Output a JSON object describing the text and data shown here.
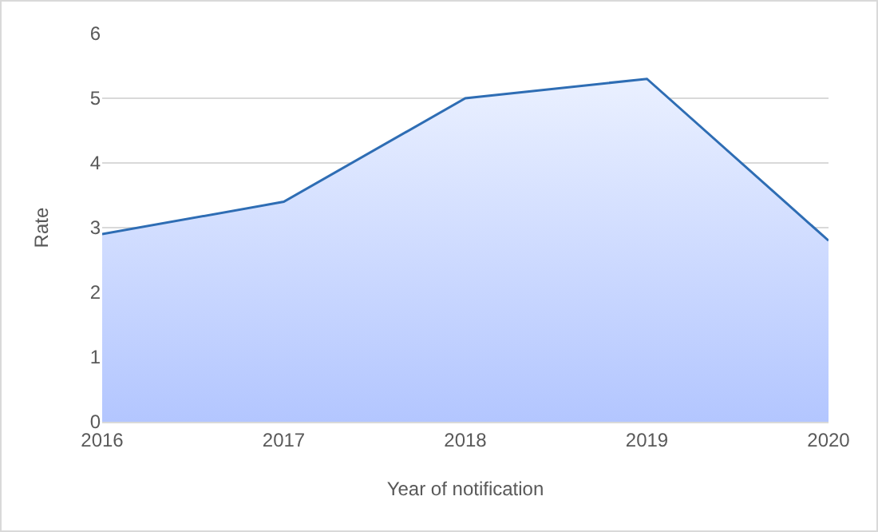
{
  "chart_data": {
    "type": "area",
    "xlabel": "Year of notification",
    "ylabel": "Rate",
    "x": [
      2016,
      2017,
      2018,
      2019,
      2020
    ],
    "series": [
      {
        "color": "#2e6db4",
        "values": [
          2.9,
          3.4,
          5.0,
          5.3,
          2.8
        ]
      }
    ],
    "xlim": [
      2016,
      2020
    ],
    "xticks": [
      2016,
      2017,
      2018,
      2019,
      2020
    ],
    "ylim": [
      0,
      6
    ],
    "yticks": [
      0,
      1,
      2,
      3,
      4,
      5,
      6
    ],
    "grid": "y",
    "legend": false
  }
}
